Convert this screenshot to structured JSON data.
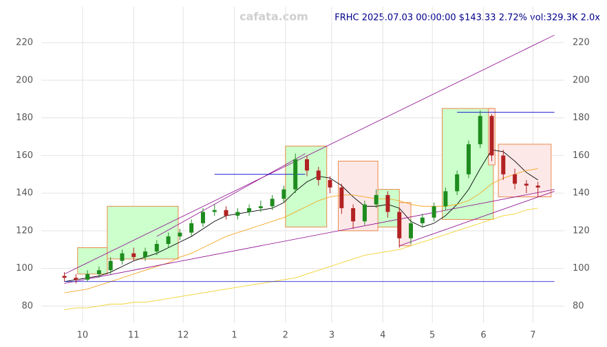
{
  "chart_data": {
    "type": "candlestick",
    "watermark": "cafata.com",
    "title": "FRHC 2025.07.03 00:00:00 $143.33 2.72% vol:329.3K 2.0x",
    "xlim": [
      5,
      322
    ],
    "ylim": [
      71,
      239
    ],
    "xticks": [
      {
        "value": 30,
        "label": "10"
      },
      {
        "value": 61,
        "label": "11"
      },
      {
        "value": 91,
        "label": "12"
      },
      {
        "value": 122,
        "label": "1"
      },
      {
        "value": 153,
        "label": "2"
      },
      {
        "value": 181,
        "label": "3"
      },
      {
        "value": 212,
        "label": "4"
      },
      {
        "value": 242,
        "label": "5"
      },
      {
        "value": 273,
        "label": "6"
      },
      {
        "value": 303,
        "label": "7"
      }
    ],
    "yticks": [
      80,
      100,
      120,
      140,
      160,
      180,
      200,
      220
    ],
    "grid": true,
    "up_color": "#1e8c1e",
    "down_color": "#b22222",
    "x": [
      19,
      26,
      33,
      40,
      47,
      54,
      61,
      68,
      75,
      82,
      89,
      96,
      103,
      110,
      117,
      124,
      131,
      138,
      145,
      152,
      159,
      166,
      173,
      180,
      187,
      194,
      201,
      208,
      215,
      222,
      229,
      236,
      243,
      250,
      257,
      264,
      271,
      278,
      285,
      292,
      299,
      306
    ],
    "open": [
      96,
      95,
      94,
      97,
      99,
      104,
      108,
      106,
      109,
      113,
      117,
      119,
      124,
      130,
      131,
      128,
      130,
      132,
      133,
      137,
      142,
      158,
      152,
      147,
      143,
      132,
      125,
      134,
      139,
      130,
      116,
      124,
      127,
      133,
      141,
      150,
      166,
      181,
      160,
      150,
      145,
      144
    ],
    "high": [
      98,
      97,
      99,
      101,
      106,
      110,
      111,
      111,
      115,
      119,
      121,
      126,
      132,
      134,
      133,
      132,
      134,
      136,
      139,
      144,
      161,
      160,
      154,
      149,
      145,
      134,
      136,
      142,
      141,
      132,
      126,
      129,
      135,
      143,
      152,
      168,
      184,
      182,
      163,
      153,
      147,
      146
    ],
    "low": [
      93,
      92,
      93,
      95,
      97,
      102,
      104,
      104,
      107,
      111,
      115,
      117,
      122,
      128,
      126,
      126,
      128,
      130,
      131,
      135,
      140,
      149,
      144,
      140,
      129,
      121,
      123,
      132,
      127,
      111,
      113,
      122,
      125,
      131,
      139,
      148,
      164,
      157,
      147,
      142,
      140,
      138
    ],
    "close": [
      95,
      94,
      97,
      99,
      104,
      108,
      106,
      109,
      113,
      117,
      119,
      124,
      130,
      131,
      128,
      130,
      132,
      133,
      137,
      142,
      158,
      152,
      147,
      143,
      132,
      125,
      134,
      139,
      130,
      116,
      124,
      127,
      133,
      141,
      150,
      166,
      181,
      160,
      150,
      145,
      144,
      143
    ],
    "lines": [
      {
        "color": "#000000",
        "values": [
          93,
          94,
          95,
          96,
          98,
          101,
          104,
          106,
          108,
          111,
          114,
          117,
          121,
          125,
          128,
          129,
          130,
          131,
          132,
          135,
          141,
          146,
          149,
          148,
          144,
          138,
          133,
          133,
          134,
          132,
          125,
          122,
          124,
          128,
          134,
          142,
          153,
          163,
          162,
          157,
          151,
          147
        ]
      },
      {
        "color": "#f5a623",
        "values": [
          87,
          88,
          89,
          91,
          93,
          95,
          97,
          99,
          101,
          103,
          106,
          108,
          111,
          114,
          117,
          119,
          121,
          123,
          125,
          127,
          130,
          133,
          136,
          138,
          139,
          139,
          138,
          137,
          137,
          136,
          134,
          133,
          133,
          133,
          134,
          136,
          140,
          145,
          148,
          150,
          152,
          153
        ]
      },
      {
        "color": "#f2d22e",
        "values": [
          78,
          79,
          79,
          80,
          81,
          81,
          82,
          82,
          83,
          84,
          85,
          86,
          87,
          88,
          89,
          90,
          91,
          92,
          93,
          94,
          95,
          97,
          99,
          101,
          103,
          105,
          107,
          108,
          109,
          110,
          112,
          114,
          116,
          118,
          120,
          122,
          124,
          126,
          128,
          129,
          131,
          132
        ]
      }
    ],
    "boxes": [
      {
        "color": "#ccffcc",
        "x": [
          27,
          45
        ],
        "y": [
          97,
          111
        ]
      },
      {
        "color": "#ccffcc",
        "x": [
          45,
          88
        ],
        "y": [
          105,
          133
        ]
      },
      {
        "color": "#ccffcc",
        "x": [
          153,
          178
        ],
        "y": [
          122,
          165
        ]
      },
      {
        "color": "#ccffcc",
        "x": [
          206,
          222
        ],
        "y": [
          122,
          142
        ]
      },
      {
        "color": "#ccffcc",
        "x": [
          248,
          279
        ],
        "y": [
          126,
          185
        ]
      },
      {
        "color": "#fde8e8",
        "x": [
          185,
          209
        ],
        "y": [
          120,
          157
        ]
      },
      {
        "color": "#fde8e8",
        "x": [
          222,
          229
        ],
        "y": [
          112,
          135
        ]
      },
      {
        "color": "#fde8e8",
        "x": [
          276,
          280
        ],
        "y": [
          155,
          185
        ]
      },
      {
        "color": "#fde8e8",
        "x": [
          282,
          314
        ],
        "y": [
          138,
          166
        ]
      }
    ],
    "trendlines": [
      {
        "color": "#8b008b",
        "x": [
          19,
          316
        ],
        "y": [
          97,
          224
        ]
      },
      {
        "color": "#8b008b",
        "x": [
          19,
          316
        ],
        "y": [
          92,
          142
        ]
      },
      {
        "color": "#0000cd",
        "x": [
          19,
          316
        ],
        "y": [
          93,
          93
        ]
      },
      {
        "color": "#8b008b",
        "x": [
          75,
          165
        ],
        "y": [
          117,
          161
        ]
      },
      {
        "color": "#8b008b",
        "x": [
          222,
          316
        ],
        "y": [
          112,
          141
        ]
      },
      {
        "color": "#0000cd",
        "x": [
          257,
          316
        ],
        "y": [
          183,
          183
        ]
      },
      {
        "color": "#0000cd",
        "x": [
          110,
          165
        ],
        "y": [
          150,
          150
        ]
      }
    ]
  }
}
